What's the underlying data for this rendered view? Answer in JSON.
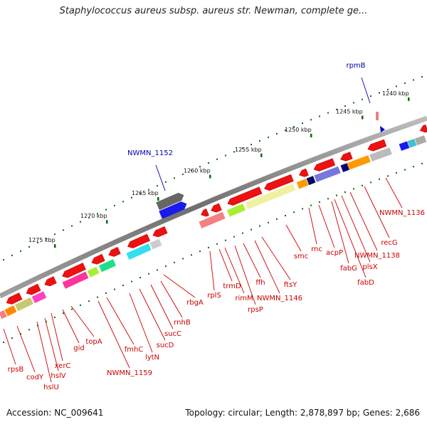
{
  "title": "Staphylococcus aureus subsp. aureus str. Newman, complete ge...",
  "footer": {
    "accession": "Accession: NC_009641",
    "topology": "Topology: circular; Length: 2,878,897 bp; Genes: 2,686"
  },
  "ticks": [
    "1240 kbp",
    "1245 kbp",
    "1250 kbp",
    "1255 kbp",
    "1260 kbp",
    "1265 kbp",
    "1270 kbp",
    "1275 kbp"
  ],
  "colors": {
    "backbone": "#8a8a8a",
    "forward_strand": "#1a1aee",
    "reverse_strand": "#ee1111",
    "label_reverse": "#cc0000",
    "label_forward": "#0000aa",
    "tick": "#0a6a0a"
  },
  "genes_forward": [
    {
      "name": "rpmB",
      "strand": "+"
    },
    {
      "name": "NWMN_1152",
      "strand": "+"
    }
  ],
  "genes_reverse": [
    {
      "name": "NWMN_1136"
    },
    {
      "name": "recG"
    },
    {
      "name": "NWMN_1138"
    },
    {
      "name": "plsX"
    },
    {
      "name": "fabD"
    },
    {
      "name": "fabG"
    },
    {
      "name": "acpP"
    },
    {
      "name": "rnc"
    },
    {
      "name": "smc"
    },
    {
      "name": "ftsY"
    },
    {
      "name": "NWMN_1146"
    },
    {
      "name": "ffh"
    },
    {
      "name": "rpsP"
    },
    {
      "name": "rimM"
    },
    {
      "name": "trmD"
    },
    {
      "name": "rplS"
    },
    {
      "name": "rbgA"
    },
    {
      "name": "rnhB"
    },
    {
      "name": "sucC"
    },
    {
      "name": "sucD"
    },
    {
      "name": "lytN"
    },
    {
      "name": "fmhC"
    },
    {
      "name": "NWMN_1159"
    },
    {
      "name": "topA"
    },
    {
      "name": "gid"
    },
    {
      "name": "xerC"
    },
    {
      "name": "hslV"
    },
    {
      "name": "hslU"
    },
    {
      "name": "codY"
    },
    {
      "name": "rpsB"
    }
  ]
}
